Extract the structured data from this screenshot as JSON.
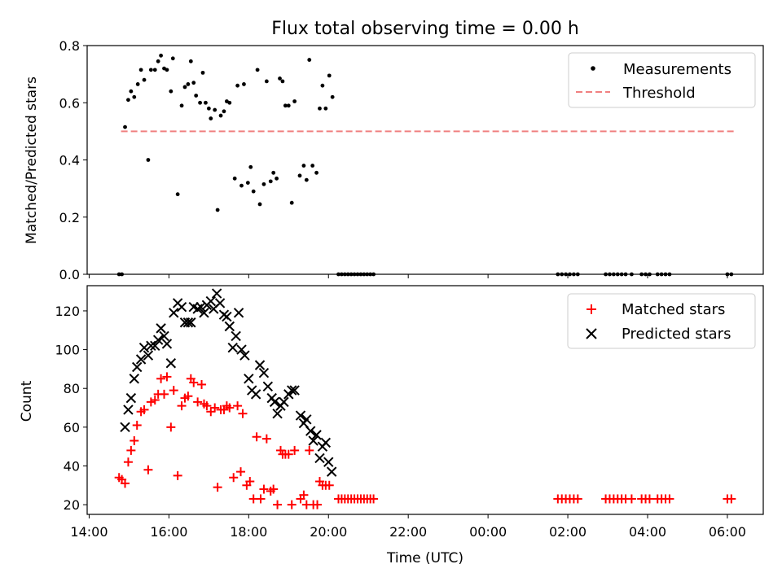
{
  "chart_data": [
    {
      "type": "scatter",
      "title": "Flux total observing time = 0.00 h",
      "xlabel": "",
      "ylabel": "Matched/Predicted stars",
      "ylim": [
        0,
        0.8
      ],
      "yticks": [
        "0.0",
        "0.2",
        "0.4",
        "0.6",
        "0.8"
      ],
      "legend": "top-right",
      "threshold": 0.5,
      "threshold_x": [
        14.8,
        30.2
      ],
      "series": [
        {
          "name": "Measurements",
          "color": "#000000",
          "marker": "dot",
          "points": [
            [
              14.75,
              0.0
            ],
            [
              14.82,
              0.0
            ],
            [
              14.9,
              0.515
            ],
            [
              14.98,
              0.61
            ],
            [
              15.05,
              0.64
            ],
            [
              15.13,
              0.62
            ],
            [
              15.22,
              0.665
            ],
            [
              15.3,
              0.715
            ],
            [
              15.38,
              0.68
            ],
            [
              15.48,
              0.4
            ],
            [
              15.55,
              0.715
            ],
            [
              15.65,
              0.715
            ],
            [
              15.73,
              0.745
            ],
            [
              15.8,
              0.765
            ],
            [
              15.88,
              0.72
            ],
            [
              15.95,
              0.715
            ],
            [
              16.05,
              0.64
            ],
            [
              16.1,
              0.755
            ],
            [
              16.22,
              0.28
            ],
            [
              16.32,
              0.59
            ],
            [
              16.4,
              0.655
            ],
            [
              16.48,
              0.665
            ],
            [
              16.55,
              0.745
            ],
            [
              16.62,
              0.67
            ],
            [
              16.68,
              0.625
            ],
            [
              16.78,
              0.6
            ],
            [
              16.85,
              0.705
            ],
            [
              16.92,
              0.6
            ],
            [
              17.0,
              0.58
            ],
            [
              17.05,
              0.545
            ],
            [
              17.15,
              0.575
            ],
            [
              17.22,
              0.225
            ],
            [
              17.3,
              0.555
            ],
            [
              17.38,
              0.57
            ],
            [
              17.45,
              0.605
            ],
            [
              17.52,
              0.6
            ],
            [
              17.65,
              0.335
            ],
            [
              17.72,
              0.66
            ],
            [
              17.82,
              0.31
            ],
            [
              17.88,
              0.665
            ],
            [
              17.98,
              0.32
            ],
            [
              18.05,
              0.375
            ],
            [
              18.12,
              0.29
            ],
            [
              18.22,
              0.715
            ],
            [
              18.28,
              0.245
            ],
            [
              18.38,
              0.315
            ],
            [
              18.45,
              0.675
            ],
            [
              18.55,
              0.325
            ],
            [
              18.62,
              0.355
            ],
            [
              18.7,
              0.335
            ],
            [
              18.78,
              0.685
            ],
            [
              18.85,
              0.675
            ],
            [
              18.92,
              0.59
            ],
            [
              19.0,
              0.59
            ],
            [
              19.08,
              0.25
            ],
            [
              19.15,
              0.605
            ],
            [
              19.28,
              0.345
            ],
            [
              19.38,
              0.38
            ],
            [
              19.45,
              0.33
            ],
            [
              19.52,
              0.75
            ],
            [
              19.6,
              0.38
            ],
            [
              19.7,
              0.355
            ],
            [
              19.78,
              0.58
            ],
            [
              19.85,
              0.66
            ],
            [
              19.93,
              0.58
            ],
            [
              20.02,
              0.695
            ],
            [
              20.1,
              0.62
            ]
          ],
          "zeros": {
            "from": 20.25,
            "to": 21.2,
            "step": 0.08,
            "extra_x": [
              25.75,
              25.85,
              25.95,
              26.05,
              26.15,
              26.25,
              26.95,
              27.05,
              27.15,
              27.25,
              27.35,
              27.45,
              27.6,
              27.85,
              27.95,
              28.05,
              28.25,
              28.35,
              28.45,
              28.55,
              30.0,
              30.1
            ]
          }
        },
        {
          "name": "Threshold",
          "color": "#f08080",
          "style": "dashed"
        }
      ]
    },
    {
      "type": "scatter",
      "title": "",
      "xlabel": "Time (UTC)",
      "ylabel": "Count",
      "ylim": [
        15,
        133
      ],
      "yticks": [
        "20",
        "40",
        "60",
        "80",
        "100",
        "120"
      ],
      "xlim": [
        13.95,
        30.9
      ],
      "xticks": [
        "14:00",
        "16:00",
        "18:00",
        "20:00",
        "22:00",
        "00:00",
        "02:00",
        "04:00",
        "06:00"
      ],
      "legend": "top-right",
      "series": [
        {
          "name": "Matched stars",
          "color": "#ff0000",
          "marker": "plus",
          "points": [
            [
              14.75,
              34
            ],
            [
              14.82,
              33
            ],
            [
              14.9,
              31
            ],
            [
              14.98,
              42
            ],
            [
              15.05,
              48
            ],
            [
              15.13,
              53
            ],
            [
              15.2,
              61
            ],
            [
              15.3,
              68
            ],
            [
              15.38,
              69
            ],
            [
              15.48,
              38
            ],
            [
              15.55,
              73
            ],
            [
              15.65,
              74
            ],
            [
              15.73,
              77
            ],
            [
              15.8,
              85
            ],
            [
              15.88,
              77
            ],
            [
              15.95,
              86
            ],
            [
              16.05,
              60
            ],
            [
              16.12,
              79
            ],
            [
              16.22,
              35
            ],
            [
              16.32,
              71
            ],
            [
              16.4,
              75
            ],
            [
              16.48,
              76
            ],
            [
              16.55,
              85
            ],
            [
              16.62,
              83
            ],
            [
              16.72,
              73
            ],
            [
              16.82,
              82
            ],
            [
              16.88,
              72
            ],
            [
              16.95,
              71
            ],
            [
              17.05,
              68
            ],
            [
              17.15,
              70
            ],
            [
              17.22,
              29
            ],
            [
              17.3,
              69
            ],
            [
              17.38,
              69
            ],
            [
              17.45,
              71
            ],
            [
              17.52,
              70
            ],
            [
              17.62,
              34
            ],
            [
              17.72,
              71
            ],
            [
              17.8,
              37
            ],
            [
              17.85,
              67
            ],
            [
              17.95,
              30
            ],
            [
              18.03,
              32
            ],
            [
              18.12,
              23
            ],
            [
              18.2,
              55
            ],
            [
              18.3,
              23
            ],
            [
              18.38,
              28
            ],
            [
              18.45,
              54
            ],
            [
              18.55,
              27
            ],
            [
              18.62,
              28
            ],
            [
              18.72,
              20
            ],
            [
              18.8,
              48
            ],
            [
              18.85,
              46
            ],
            [
              18.92,
              46
            ],
            [
              19.0,
              46
            ],
            [
              19.08,
              20
            ],
            [
              19.15,
              48
            ],
            [
              19.3,
              23
            ],
            [
              19.38,
              25
            ],
            [
              19.45,
              20
            ],
            [
              19.52,
              48
            ],
            [
              19.62,
              20
            ],
            [
              19.72,
              20
            ],
            [
              19.78,
              32
            ],
            [
              19.85,
              30
            ],
            [
              19.93,
              30
            ],
            [
              20.02,
              30
            ]
          ],
          "floor": {
            "value": 23,
            "from": 20.25,
            "to": 21.2,
            "step": 0.08,
            "extra_x": [
              25.75,
              25.85,
              25.95,
              26.05,
              26.15,
              26.25,
              26.95,
              27.05,
              27.15,
              27.25,
              27.35,
              27.45,
              27.6,
              27.85,
              27.95,
              28.05,
              28.25,
              28.35,
              28.45,
              28.55,
              30.0,
              30.1
            ]
          }
        },
        {
          "name": "Predicted stars",
          "color": "#000000",
          "marker": "x",
          "points": [
            [
              14.9,
              60
            ],
            [
              14.98,
              69
            ],
            [
              15.05,
              75
            ],
            [
              15.13,
              85
            ],
            [
              15.2,
              91
            ],
            [
              15.3,
              95
            ],
            [
              15.38,
              101
            ],
            [
              15.48,
              97
            ],
            [
              15.55,
              102
            ],
            [
              15.65,
              102
            ],
            [
              15.73,
              105
            ],
            [
              15.8,
              111
            ],
            [
              15.88,
              107
            ],
            [
              15.95,
              103
            ],
            [
              16.05,
              93
            ],
            [
              16.12,
              119
            ],
            [
              16.22,
              124
            ],
            [
              16.32,
              122
            ],
            [
              16.4,
              114
            ],
            [
              16.48,
              114
            ],
            [
              16.55,
              114
            ],
            [
              16.62,
              122
            ],
            [
              16.72,
              121
            ],
            [
              16.8,
              122
            ],
            [
              16.88,
              119
            ],
            [
              16.95,
              123
            ],
            [
              17.05,
              125
            ],
            [
              17.12,
              121
            ],
            [
              17.2,
              129
            ],
            [
              17.28,
              124
            ],
            [
              17.38,
              118
            ],
            [
              17.45,
              117
            ],
            [
              17.52,
              112
            ],
            [
              17.6,
              101
            ],
            [
              17.68,
              107
            ],
            [
              17.75,
              119
            ],
            [
              17.82,
              100
            ],
            [
              17.9,
              97
            ],
            [
              18.0,
              85
            ],
            [
              18.08,
              79
            ],
            [
              18.18,
              77
            ],
            [
              18.28,
              92
            ],
            [
              18.38,
              88
            ],
            [
              18.48,
              81
            ],
            [
              18.58,
              75
            ],
            [
              18.65,
              73
            ],
            [
              18.72,
              67
            ],
            [
              18.8,
              71
            ],
            [
              18.88,
              73
            ],
            [
              19.0,
              77
            ],
            [
              19.08,
              79
            ],
            [
              19.15,
              79
            ],
            [
              19.3,
              66
            ],
            [
              19.38,
              62
            ],
            [
              19.45,
              64
            ],
            [
              19.55,
              58
            ],
            [
              19.62,
              53
            ],
            [
              19.7,
              56
            ],
            [
              19.78,
              44
            ],
            [
              19.85,
              50
            ],
            [
              19.93,
              52
            ],
            [
              20.0,
              42
            ],
            [
              20.08,
              37
            ]
          ]
        }
      ]
    }
  ]
}
